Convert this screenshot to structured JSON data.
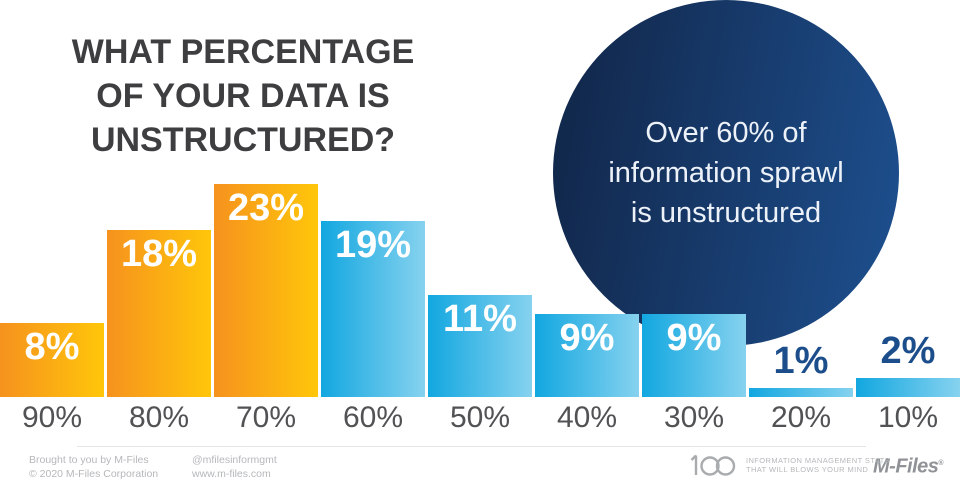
{
  "header": {
    "title_lines": [
      "WHAT PERCENTAGE",
      "OF YOUR DATA IS",
      "UNSTRUCTURED?"
    ]
  },
  "callout": {
    "lines": [
      "Over 60% of",
      "information sprawl",
      "is unstructured"
    ]
  },
  "chart_data": {
    "type": "bar",
    "title": "WHAT PERCENTAGE OF YOUR DATA IS UNSTRUCTURED?",
    "categories": [
      "90%",
      "80%",
      "70%",
      "60%",
      "50%",
      "40%",
      "30%",
      "20%",
      "10%"
    ],
    "values": [
      8,
      18,
      23,
      19,
      11,
      9,
      9,
      1,
      2
    ],
    "bar_labels": [
      "8%",
      "18%",
      "23%",
      "19%",
      "11%",
      "9%",
      "9%",
      "1%",
      "2%"
    ],
    "bar_palettes": [
      "orange",
      "orange",
      "orange",
      "blue",
      "blue",
      "blue",
      "blue",
      "blue",
      "blue"
    ],
    "ylim": [
      0,
      25
    ],
    "grid": false,
    "legend": false,
    "annotation": "Over 60% of information sprawl is unstructured"
  },
  "colors": {
    "orange_start": "#F6921E",
    "orange_end": "#FFC60A",
    "blue_start": "#12A7E0",
    "blue_end": "#86D2EF",
    "circle_start": "#12294E",
    "circle_end": "#1D4E8C",
    "label_inside": "#FFFFFF",
    "label_above": "#1D4E8C",
    "title": "#3E3E40",
    "axis": "#515254",
    "footer": "#B5B8BA"
  },
  "footer": {
    "credit_line1": "Brought to you by M-Files",
    "credit_line2": "© 2020 M-Files Corporation",
    "social_handle": "@mfilesinformgmt",
    "website": "www.m-files.com",
    "stats_number": "100",
    "tagline_line1": "INFORMATION MANAGEMENT STATS",
    "tagline_line2": "THAT WILL BLOWS YOUR MIND",
    "brand": "M-Files",
    "registered_mark": "®"
  }
}
